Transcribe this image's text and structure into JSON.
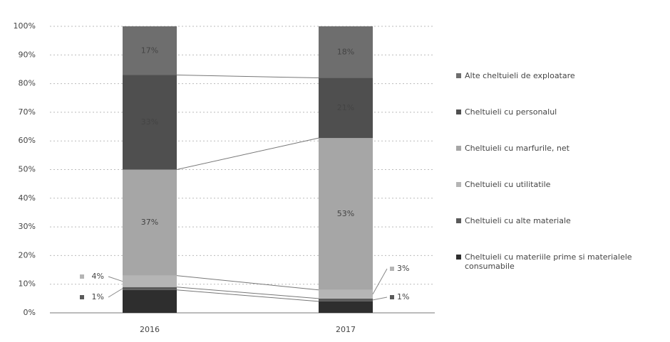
{
  "chart_data": {
    "type": "stacked_bar_100",
    "categories": [
      "2016",
      "2017"
    ],
    "series": [
      {
        "name": "Cheltuieli cu materiile prime si materialele consumabile",
        "color": "#2e2e2e",
        "values": [
          8,
          4
        ],
        "value_labels": [
          null,
          null
        ]
      },
      {
        "name": "Cheltuieli cu alte materiale",
        "color": "#5a5a5a",
        "values": [
          1,
          1
        ],
        "value_labels": [
          "1%",
          "1%"
        ]
      },
      {
        "name": "Cheltuieli cu utilitatile",
        "color": "#b5b5b5",
        "values": [
          4,
          3
        ],
        "value_labels": [
          "4%",
          "3%"
        ]
      },
      {
        "name": "Cheltuieli cu marfurile, net",
        "color": "#a6a6a6",
        "values": [
          37,
          53
        ],
        "value_labels": [
          "37%",
          "53%"
        ]
      },
      {
        "name": "Cheltuieli cu personalul",
        "color": "#4f4f4f",
        "values": [
          33,
          21
        ],
        "value_labels": [
          "33%",
          "21%"
        ]
      },
      {
        "name": "Alte cheltuieli de exploatare",
        "color": "#6e6e6e",
        "values": [
          17,
          18
        ],
        "value_labels": [
          "17%",
          "18%"
        ]
      }
    ],
    "ylim": [
      0,
      100
    ],
    "yticks": [
      {
        "value": 0,
        "label": "0%"
      },
      {
        "value": 10,
        "label": "10%"
      },
      {
        "value": 20,
        "label": "20%"
      },
      {
        "value": 30,
        "label": "30%"
      },
      {
        "value": 40,
        "label": "40%"
      },
      {
        "value": 50,
        "label": "50%"
      },
      {
        "value": 60,
        "label": "60%"
      },
      {
        "value": 70,
        "label": "70%"
      },
      {
        "value": 80,
        "label": "80%"
      },
      {
        "value": 90,
        "label": "90%"
      },
      {
        "value": 100,
        "label": "100%"
      }
    ],
    "grid": true,
    "legend": "right"
  }
}
